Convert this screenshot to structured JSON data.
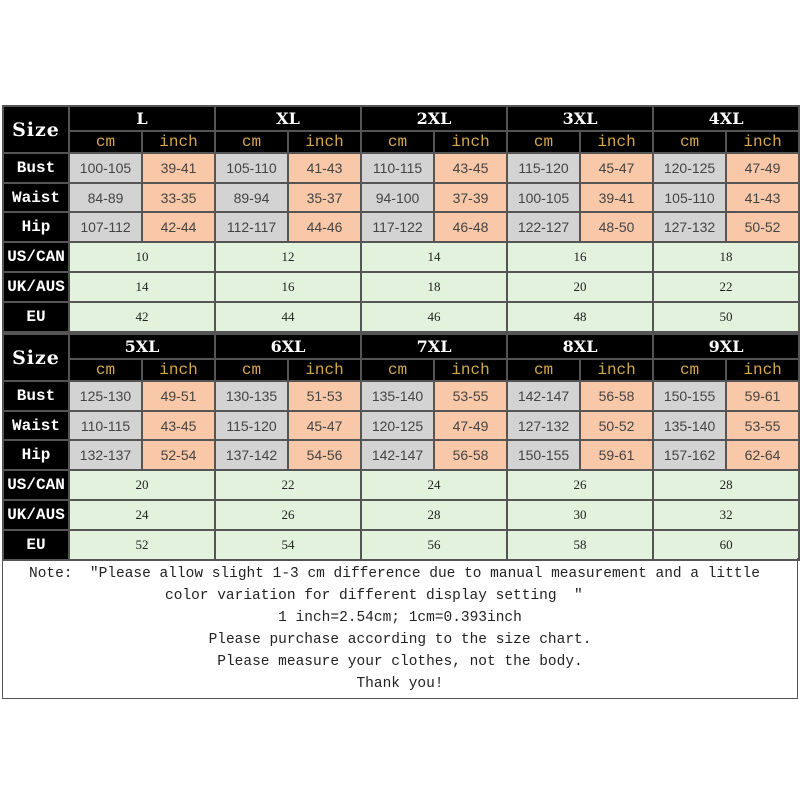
{
  "colors": {
    "header_bg": "#000000",
    "unit_text": "#d4a84a",
    "cm_bg": "#d3d3d3",
    "inch_bg": "#f8c8a8",
    "intl_bg": "#e2f2dc"
  },
  "size_label": "Size",
  "unit_labels": {
    "cm": "cm",
    "inch": "inch"
  },
  "row_labels": {
    "bust": "Bust",
    "waist": "Waist",
    "hip": "Hip",
    "us": "US/CAN",
    "uk": "UK/AUS",
    "eu": "EU"
  },
  "blocks": [
    {
      "sizes": [
        {
          "name": "L",
          "bust": [
            "100-105",
            "39-41"
          ],
          "waist": [
            "84-89",
            "33-35"
          ],
          "hip": [
            "107-112",
            "42-44"
          ],
          "us": "10",
          "uk": "14",
          "eu": "42"
        },
        {
          "name": "XL",
          "bust": [
            "105-110",
            "41-43"
          ],
          "waist": [
            "89-94",
            "35-37"
          ],
          "hip": [
            "112-117",
            "44-46"
          ],
          "us": "12",
          "uk": "16",
          "eu": "44"
        },
        {
          "name": "2XL",
          "bust": [
            "110-115",
            "43-45"
          ],
          "waist": [
            "94-100",
            "37-39"
          ],
          "hip": [
            "117-122",
            "46-48"
          ],
          "us": "14",
          "uk": "18",
          "eu": "46"
        },
        {
          "name": "3XL",
          "bust": [
            "115-120",
            "45-47"
          ],
          "waist": [
            "100-105",
            "39-41"
          ],
          "hip": [
            "122-127",
            "48-50"
          ],
          "us": "16",
          "uk": "20",
          "eu": "48"
        },
        {
          "name": "4XL",
          "bust": [
            "120-125",
            "47-49"
          ],
          "waist": [
            "105-110",
            "41-43"
          ],
          "hip": [
            "127-132",
            "50-52"
          ],
          "us": "18",
          "uk": "22",
          "eu": "50"
        }
      ]
    },
    {
      "sizes": [
        {
          "name": "5XL",
          "bust": [
            "125-130",
            "49-51"
          ],
          "waist": [
            "110-115",
            "43-45"
          ],
          "hip": [
            "132-137",
            "52-54"
          ],
          "us": "20",
          "uk": "24",
          "eu": "52"
        },
        {
          "name": "6XL",
          "bust": [
            "130-135",
            "51-53"
          ],
          "waist": [
            "115-120",
            "45-47"
          ],
          "hip": [
            "137-142",
            "54-56"
          ],
          "us": "22",
          "uk": "26",
          "eu": "54"
        },
        {
          "name": "7XL",
          "bust": [
            "135-140",
            "53-55"
          ],
          "waist": [
            "120-125",
            "47-49"
          ],
          "hip": [
            "142-147",
            "56-58"
          ],
          "us": "24",
          "uk": "28",
          "eu": "56"
        },
        {
          "name": "8XL",
          "bust": [
            "142-147",
            "56-58"
          ],
          "waist": [
            "127-132",
            "50-52"
          ],
          "hip": [
            "150-155",
            "59-61"
          ],
          "us": "26",
          "uk": "30",
          "eu": "58"
        },
        {
          "name": "9XL",
          "bust": [
            "150-155",
            "59-61"
          ],
          "waist": [
            "135-140",
            "53-55"
          ],
          "hip": [
            "157-162",
            "62-64"
          ],
          "us": "28",
          "uk": "32",
          "eu": "60"
        }
      ]
    }
  ],
  "note": {
    "line1": "Note:  \"Please allow slight 1-3 cm difference due to manual measurement and a little",
    "line2": "color variation for different display setting  \"",
    "line3": "1 inch=2.54cm; 1cm=0.393inch",
    "line4": "Please purchase according to the size chart.",
    "line5": "Please measure your clothes, not the body.",
    "line6": "Thank you!"
  }
}
